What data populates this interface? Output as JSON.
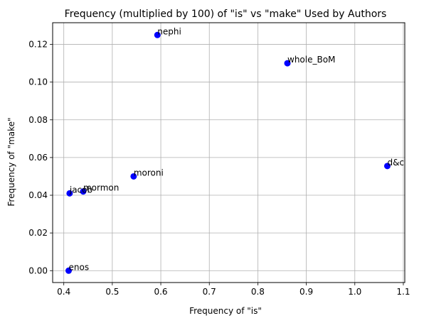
{
  "chart_data": {
    "type": "scatter",
    "title": "Frequency (multiplied by 100) of \"is\" vs \"make\" Used by Authors",
    "xlabel": "Frequency of \"is\"",
    "ylabel": "Frequency of \"make\"",
    "xlim": [
      0.377,
      1.103
    ],
    "ylim": [
      -0.0063,
      0.1315
    ],
    "xticks": [
      0.4,
      0.5,
      0.6,
      0.7,
      0.8,
      0.9,
      1.0,
      1.1
    ],
    "xtick_labels": [
      "0.4",
      "0.5",
      "0.6",
      "0.7",
      "0.8",
      "0.9",
      "1.0",
      "1.1"
    ],
    "yticks": [
      0.0,
      0.02,
      0.04,
      0.06,
      0.08,
      0.1,
      0.12
    ],
    "ytick_labels": [
      "0.00",
      "0.02",
      "0.04",
      "0.06",
      "0.08",
      "0.10",
      "0.12"
    ],
    "grid": true,
    "marker_color": "#0000ff",
    "points": [
      {
        "label": "nephi",
        "x": 0.593,
        "y": 0.125
      },
      {
        "label": "whole_BoM",
        "x": 0.861,
        "y": 0.11
      },
      {
        "label": "d&c",
        "x": 1.067,
        "y": 0.0555
      },
      {
        "label": "moroni",
        "x": 0.544,
        "y": 0.05
      },
      {
        "label": "mormon",
        "x": 0.44,
        "y": 0.042
      },
      {
        "label": "jacob",
        "x": 0.412,
        "y": 0.041
      },
      {
        "label": "enos",
        "x": 0.41,
        "y": 0.0
      }
    ]
  }
}
